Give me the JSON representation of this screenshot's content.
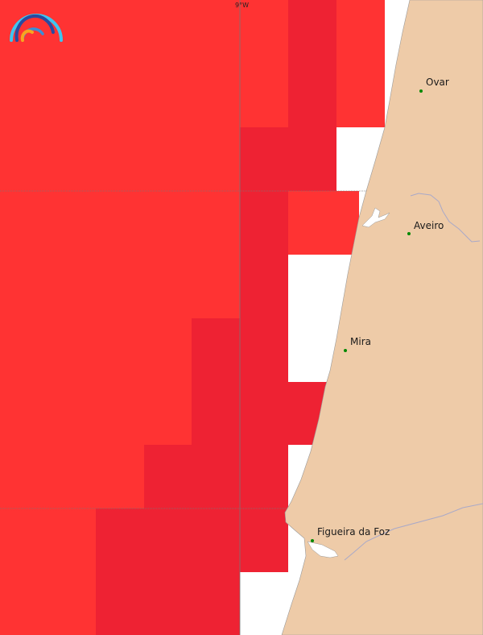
{
  "map": {
    "graticule_label": "9°W",
    "colors": {
      "cell_light": "#ff3333",
      "cell_dark": "#ee2233",
      "land": "#eecba8",
      "sea": "#ffffff",
      "city_dot": "#008800",
      "river": "#a9a9c8"
    },
    "logo": {
      "name": "rainbow-arc-logo"
    },
    "cities": [
      {
        "name": "Ovar"
      },
      {
        "name": "Aveiro"
      },
      {
        "name": "Mira"
      },
      {
        "name": "Figueira da Foz"
      }
    ]
  }
}
